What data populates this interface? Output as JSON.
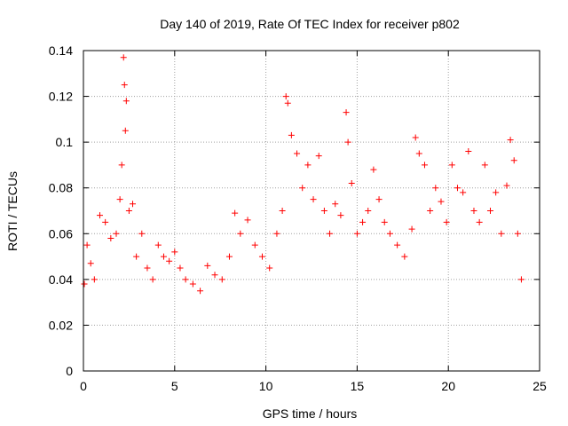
{
  "chart_data": {
    "type": "scatter",
    "title": "Day 140 of 2019, Rate Of TEC Index for receiver p802",
    "xlabel": "GPS time / hours",
    "ylabel": "ROTI / TECUs",
    "xlim": [
      0,
      25
    ],
    "ylim": [
      0,
      0.14
    ],
    "x_ticks": [
      "0",
      "5",
      "10",
      "15",
      "20",
      "25"
    ],
    "y_ticks": [
      "0",
      "0.02",
      "0.04",
      "0.06",
      "0.08",
      "0.1",
      "0.12",
      "0.14"
    ],
    "grid": true,
    "marker": "+",
    "color": "#ff0000",
    "series": [
      {
        "x": [
          0.05,
          0.2,
          0.4,
          0.6,
          0.9,
          1.2,
          1.5,
          1.8,
          2.0,
          2.1,
          2.2,
          2.25,
          2.3,
          2.35,
          2.5,
          2.7,
          2.9,
          3.2,
          3.5,
          3.8,
          4.1,
          4.4,
          4.7,
          5.0,
          5.3,
          5.6,
          6.0,
          6.4,
          6.8,
          7.2,
          7.6,
          8.0,
          8.3,
          8.6,
          9.0,
          9.4,
          9.8,
          10.2,
          10.6,
          10.9,
          11.1,
          11.2,
          11.4,
          11.7,
          12.0,
          12.3,
          12.6,
          12.9,
          13.2,
          13.5,
          13.8,
          14.1,
          14.4,
          14.5,
          14.7,
          15.0,
          15.3,
          15.6,
          15.9,
          16.2,
          16.5,
          16.8,
          17.2,
          17.6,
          18.0,
          18.2,
          18.4,
          18.7,
          19.0,
          19.3,
          19.6,
          19.9,
          20.2,
          20.5,
          20.8,
          21.1,
          21.4,
          21.7,
          22.0,
          22.3,
          22.6,
          22.9,
          23.2,
          23.4,
          23.6,
          23.8,
          24.0
        ],
        "y": [
          0.038,
          0.055,
          0.047,
          0.04,
          0.068,
          0.065,
          0.058,
          0.06,
          0.075,
          0.09,
          0.137,
          0.125,
          0.105,
          0.118,
          0.07,
          0.073,
          0.05,
          0.06,
          0.045,
          0.04,
          0.055,
          0.05,
          0.048,
          0.052,
          0.045,
          0.04,
          0.038,
          0.035,
          0.046,
          0.042,
          0.04,
          0.05,
          0.069,
          0.06,
          0.066,
          0.055,
          0.05,
          0.045,
          0.06,
          0.07,
          0.12,
          0.117,
          0.103,
          0.095,
          0.08,
          0.09,
          0.075,
          0.094,
          0.07,
          0.06,
          0.073,
          0.068,
          0.113,
          0.1,
          0.082,
          0.06,
          0.065,
          0.07,
          0.088,
          0.075,
          0.065,
          0.06,
          0.055,
          0.05,
          0.062,
          0.102,
          0.095,
          0.09,
          0.07,
          0.08,
          0.074,
          0.065,
          0.09,
          0.08,
          0.078,
          0.096,
          0.07,
          0.065,
          0.09,
          0.07,
          0.078,
          0.06,
          0.081,
          0.101,
          0.092,
          0.06,
          0.04
        ]
      }
    ]
  }
}
